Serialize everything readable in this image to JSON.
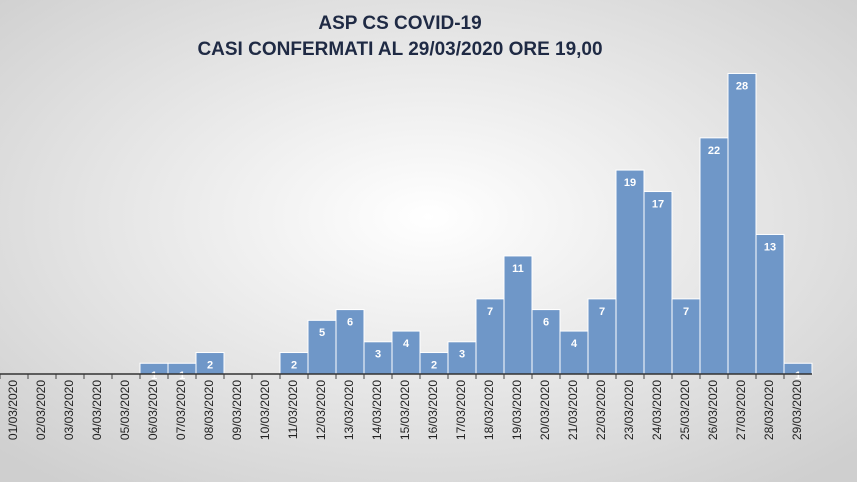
{
  "chart_data": {
    "type": "bar",
    "title": "ASP CS COVID-19",
    "subtitle": "CASI CONFERMATI AL 29/03/2020 ORE 19,00",
    "categories": [
      "01/03/2020",
      "02/03/2020",
      "03/03/2020",
      "04/03/2020",
      "05/03/2020",
      "06/03/2020",
      "07/03/2020",
      "08/03/2020",
      "09/03/2020",
      "10/03/2020",
      "11/03/2020",
      "12/03/2020",
      "13/03/2020",
      "14/03/2020",
      "15/03/2020",
      "16/03/2020",
      "17/03/2020",
      "18/03/2020",
      "19/03/2020",
      "20/03/2020",
      "21/03/2020",
      "22/03/2020",
      "23/03/2020",
      "24/03/2020",
      "25/03/2020",
      "26/03/2020",
      "27/03/2020",
      "28/03/2020",
      "29/03/2020"
    ],
    "values": [
      0,
      0,
      0,
      0,
      0,
      1,
      1,
      2,
      0,
      0,
      2,
      5,
      6,
      3,
      4,
      2,
      3,
      7,
      11,
      6,
      4,
      7,
      19,
      17,
      7,
      22,
      28,
      13,
      1
    ],
    "color": "#6f97c8",
    "ylim": [
      0,
      30
    ]
  }
}
